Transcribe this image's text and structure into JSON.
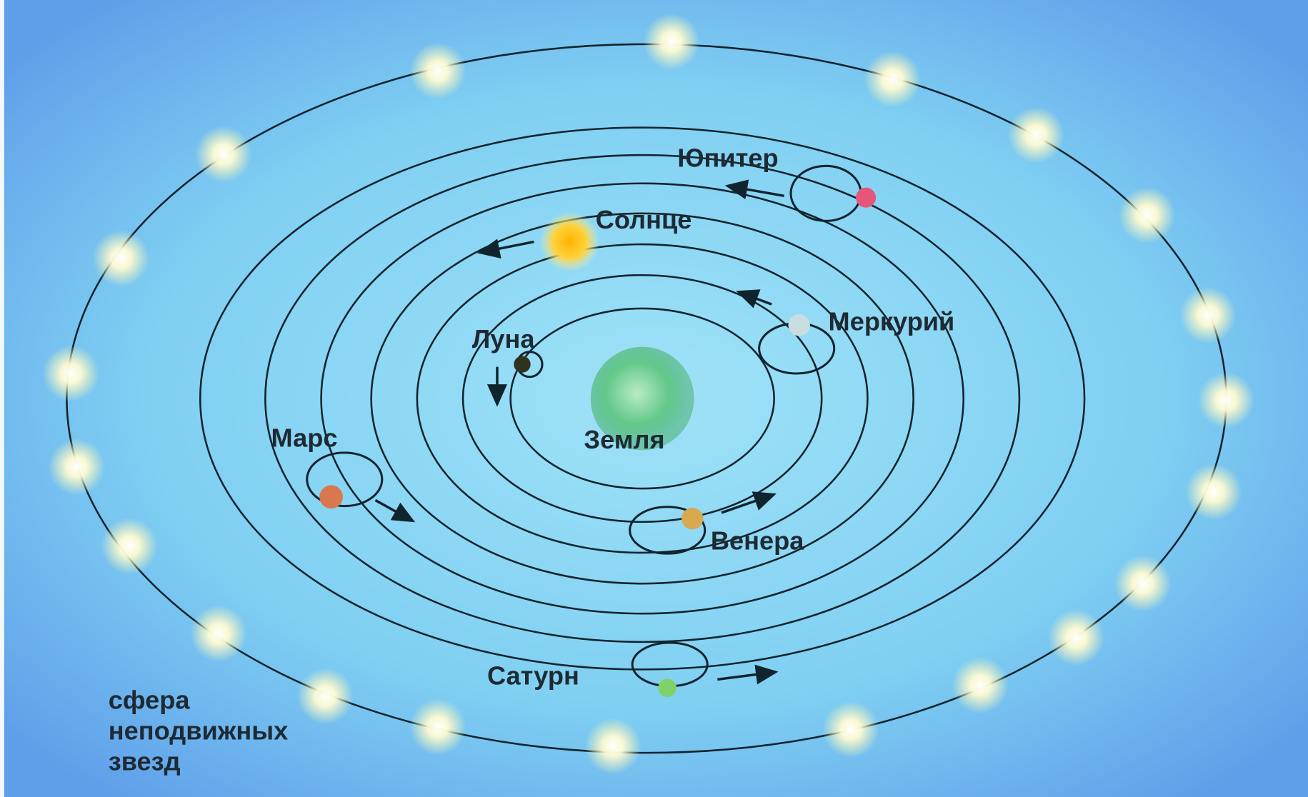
{
  "nodes": [
    {
      "label": "Юпитер"
    },
    {
      "label": "Солнце"
    },
    {
      "label": "Меркурий"
    },
    {
      "label": "Луна"
    },
    {
      "label": "Земля"
    },
    {
      "label": "Марс"
    },
    {
      "label": "Венера"
    },
    {
      "label": "Сатурн"
    }
  ],
  "sphere_label": [
    "сфера",
    "неподвижных",
    "звезд"
  ]
}
